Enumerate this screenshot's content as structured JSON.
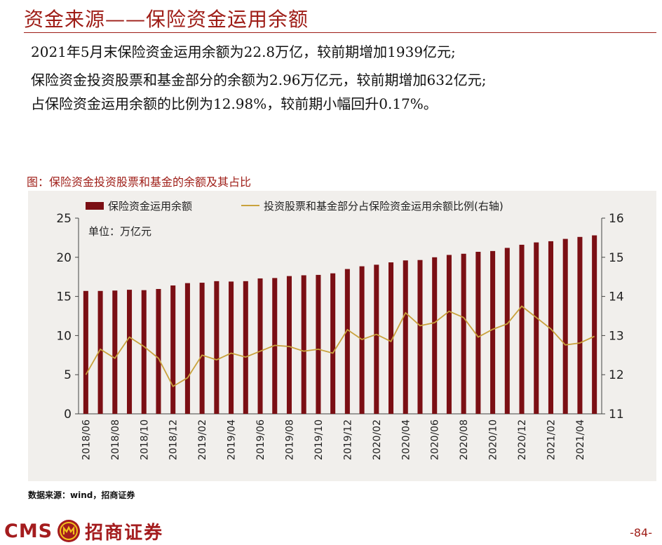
{
  "page": {
    "title": "资金来源——保险资金运用余额",
    "lines": [
      "2021年5月末保险资金运用余额为22.8万亿，较前期增加1939亿元;",
      "保险资金投资股票和基金部分的余额为2.96万亿元，较前期增加632亿元;",
      "占保险资金运用余额的比例为12.98%，较前期小幅回升0.17%。"
    ],
    "figure_caption": "图：保险资金投资股票和基金的余额及其占比",
    "source": "数据来源：wind，招商证券",
    "page_number": "-84-",
    "logo": {
      "latin": "CMS",
      "chinese": "招商证券",
      "emblem_icon": "cms-emblem-icon"
    }
  },
  "colors": {
    "accent": "#9e1c16",
    "bar": "#7b0f14",
    "line": "#c9a23c",
    "panel_bg": "#f1efec"
  },
  "chart_data": {
    "type": "bar",
    "unit_label": "单位：万亿元",
    "categories": [
      "2018/06",
      "2018/07",
      "2018/08",
      "2018/09",
      "2018/10",
      "2018/11",
      "2018/12",
      "2019/01",
      "2019/02",
      "2019/03",
      "2019/04",
      "2019/05",
      "2019/06",
      "2019/07",
      "2019/08",
      "2019/09",
      "2019/10",
      "2019/11",
      "2019/12",
      "2020/01",
      "2020/02",
      "2020/03",
      "2020/04",
      "2020/05",
      "2020/06",
      "2020/07",
      "2020/08",
      "2020/09",
      "2020/10",
      "2020/11",
      "2020/12",
      "2021/01",
      "2021/02",
      "2021/03",
      "2021/04",
      "2021/05"
    ],
    "x_tick_labels": [
      "2018/06",
      "2018/08",
      "2018/10",
      "2018/12",
      "2019/02",
      "2019/04",
      "2019/06",
      "2019/08",
      "2019/10",
      "2019/12",
      "2020/02",
      "2020/04",
      "2020/06",
      "2020/08",
      "2020/10",
      "2020/12",
      "2021/02",
      "2021/04"
    ],
    "series": [
      {
        "name": "保险资金运用余额",
        "type": "bar",
        "axis": "left",
        "values": [
          15.7,
          15.7,
          15.75,
          15.85,
          15.8,
          15.95,
          16.4,
          16.7,
          16.75,
          16.95,
          16.9,
          16.95,
          17.3,
          17.35,
          17.6,
          17.7,
          17.75,
          17.95,
          18.5,
          18.85,
          19.05,
          19.35,
          19.6,
          19.65,
          20.0,
          20.3,
          20.45,
          20.7,
          20.8,
          21.2,
          21.6,
          21.9,
          22.05,
          22.35,
          22.6,
          22.8
        ]
      },
      {
        "name": "投资股票和基金部分占保险资金运用余额比例(右轴)",
        "type": "line",
        "axis": "right",
        "values": [
          12.0,
          12.65,
          12.42,
          12.96,
          12.72,
          12.42,
          11.7,
          11.92,
          12.5,
          12.38,
          12.55,
          12.45,
          12.6,
          12.75,
          12.72,
          12.6,
          12.65,
          12.55,
          13.15,
          12.9,
          13.03,
          12.85,
          13.58,
          13.25,
          13.33,
          13.62,
          13.46,
          12.96,
          13.16,
          13.3,
          13.75,
          13.46,
          13.17,
          12.76,
          12.81,
          12.98
        ]
      }
    ],
    "y_left": {
      "min": 0,
      "max": 25,
      "ticks": [
        0,
        5,
        10,
        15,
        20,
        25
      ]
    },
    "y_right": {
      "min": 11,
      "max": 16,
      "ticks": [
        11,
        12,
        13,
        14,
        15,
        16
      ]
    },
    "legend_position": "top",
    "grid": false
  }
}
